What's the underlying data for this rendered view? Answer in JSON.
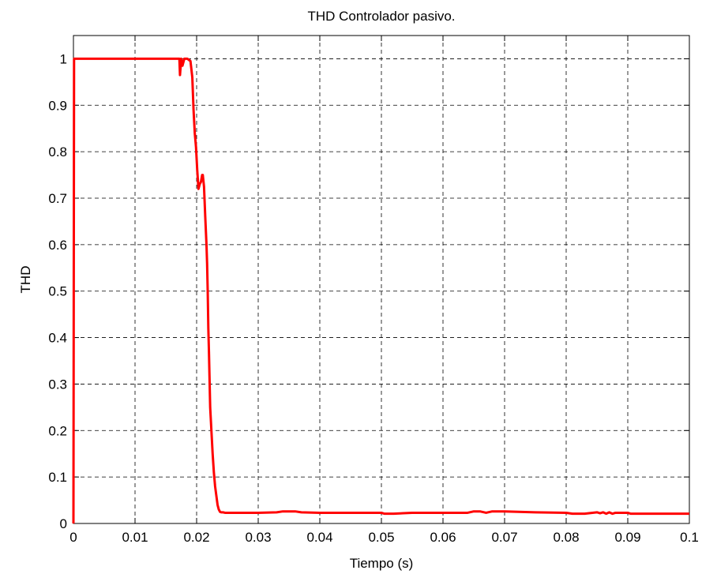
{
  "chart_data": {
    "type": "line",
    "title": "THD Controlador pasivo.",
    "xlabel": "Tiempo (s)",
    "ylabel": "THD",
    "xlim": [
      0,
      0.1
    ],
    "ylim": [
      0,
      1.05
    ],
    "grid": true,
    "xticks": [
      "0",
      "0.01",
      "0.02",
      "0.03",
      "0.04",
      "0.05",
      "0.06",
      "0.07",
      "0.08",
      "0.09",
      "0.1"
    ],
    "yticks": [
      "0",
      "0.1",
      "0.2",
      "0.3",
      "0.4",
      "0.5",
      "0.6",
      "0.7",
      "0.8",
      "0.9",
      "1"
    ],
    "line_color": "#ff0000",
    "series": [
      {
        "x": [
          0,
          0.0001,
          0.0003,
          0.005,
          0.01,
          0.015,
          0.0172,
          0.0173,
          0.0175,
          0.0177,
          0.018,
          0.0185,
          0.019,
          0.0193,
          0.0195,
          0.0197,
          0.0199,
          0.0201,
          0.0203,
          0.0205,
          0.0207,
          0.0209,
          0.021,
          0.0212,
          0.0214,
          0.0216,
          0.0217,
          0.0218,
          0.0219,
          0.022,
          0.0221,
          0.0222,
          0.0224,
          0.0226,
          0.0228,
          0.023,
          0.0232,
          0.0234,
          0.0236,
          0.0238,
          0.024,
          0.0243,
          0.0246,
          0.025,
          0.027,
          0.03,
          0.033,
          0.034,
          0.036,
          0.037,
          0.04,
          0.045,
          0.05,
          0.0505,
          0.052,
          0.055,
          0.06,
          0.064,
          0.065,
          0.066,
          0.067,
          0.068,
          0.07,
          0.075,
          0.08,
          0.081,
          0.083,
          0.085,
          0.0855,
          0.086,
          0.0865,
          0.087,
          0.0875,
          0.088,
          0.09,
          0.0905,
          0.095,
          0.1
        ],
        "y": [
          0,
          1.0,
          1.0,
          1.0,
          1.0,
          1.0,
          1.0,
          0.965,
          1.0,
          0.985,
          1.0,
          1.0,
          0.995,
          0.96,
          0.89,
          0.84,
          0.81,
          0.76,
          0.72,
          0.73,
          0.735,
          0.75,
          0.75,
          0.725,
          0.66,
          0.6,
          0.56,
          0.5,
          0.42,
          0.37,
          0.31,
          0.25,
          0.2,
          0.15,
          0.11,
          0.08,
          0.06,
          0.04,
          0.03,
          0.025,
          0.024,
          0.024,
          0.023,
          0.023,
          0.023,
          0.023,
          0.024,
          0.026,
          0.026,
          0.024,
          0.023,
          0.023,
          0.023,
          0.021,
          0.021,
          0.023,
          0.023,
          0.023,
          0.026,
          0.026,
          0.023,
          0.026,
          0.026,
          0.024,
          0.023,
          0.021,
          0.021,
          0.024,
          0.022,
          0.024,
          0.021,
          0.024,
          0.021,
          0.023,
          0.023,
          0.021,
          0.021,
          0.021
        ]
      }
    ]
  }
}
